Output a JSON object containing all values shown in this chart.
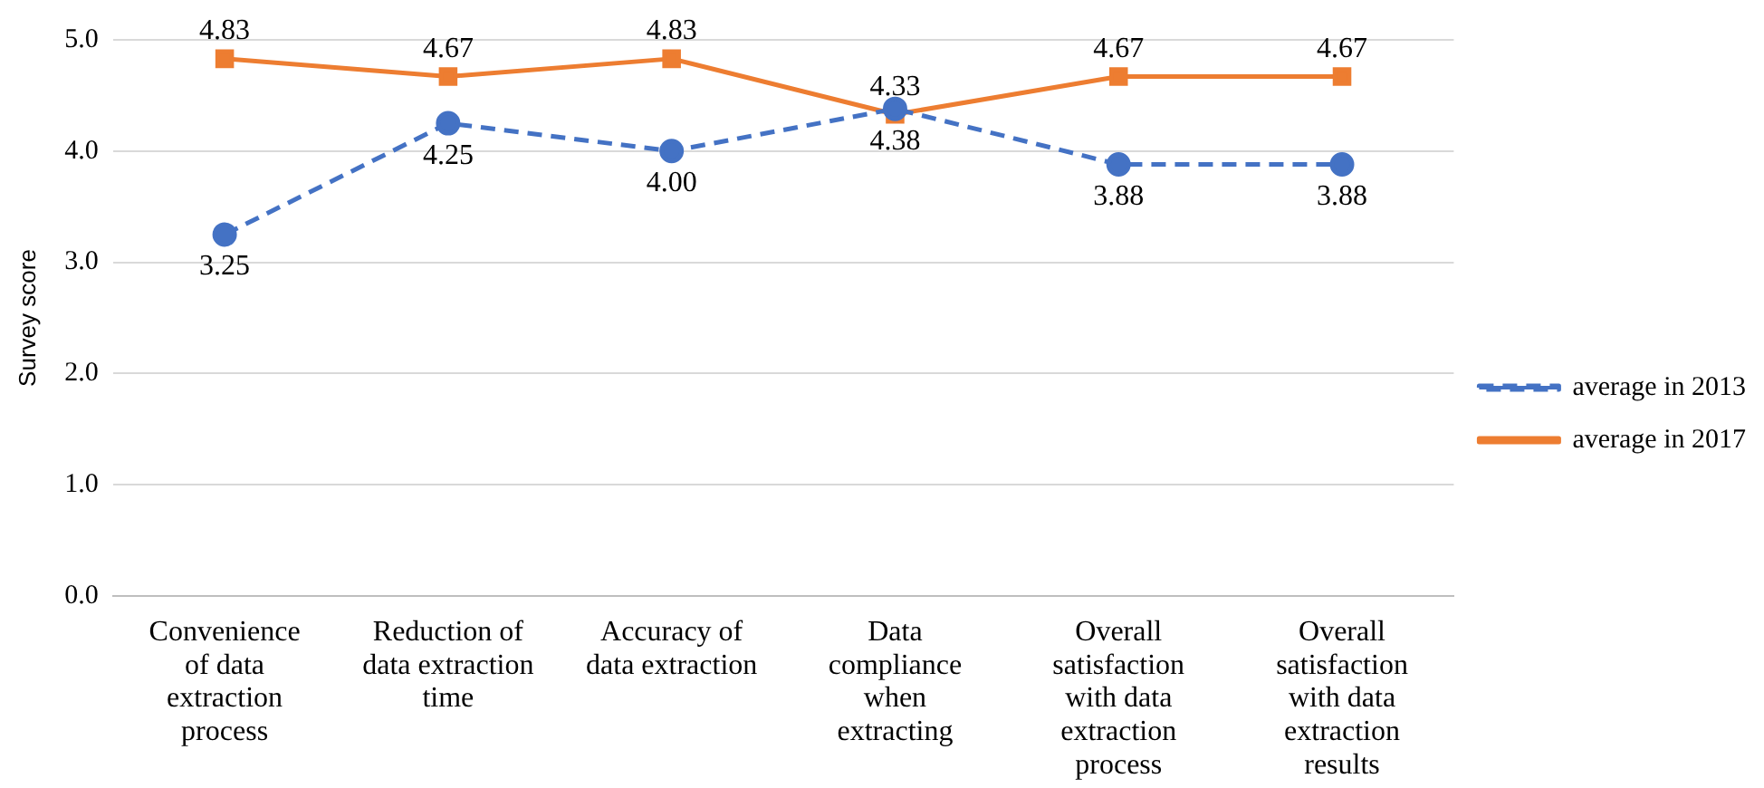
{
  "chart_data": {
    "type": "line",
    "ylabel": "Survey score",
    "categories": [
      "Convenience of data extraction process",
      "Reduction of data extraction time",
      "Accuracy of data extraction",
      "Data compliance when extracting",
      "Overall satisfaction with data extraction process",
      "Overall satisfaction with data extraction results"
    ],
    "series": [
      {
        "name": "average in 2013",
        "color": "#4472c4",
        "values": [
          3.25,
          4.25,
          4.0,
          4.38,
          3.88,
          3.88
        ],
        "value_labels": [
          "3.25",
          "4.25",
          "4.00",
          "4.38",
          "3.88",
          "3.88"
        ],
        "marker": "circle",
        "line_style": "dashed"
      },
      {
        "name": "average in 2017",
        "color": "#ed7d31",
        "values": [
          4.83,
          4.67,
          4.83,
          4.33,
          4.67,
          4.67
        ],
        "value_labels": [
          "4.83",
          "4.67",
          "4.83",
          "4.33",
          "4.67",
          "4.67"
        ],
        "marker": "square",
        "line_style": "solid"
      }
    ],
    "ylim": [
      0,
      5
    ],
    "yticks": [
      {
        "value": 0,
        "label": "0.0"
      },
      {
        "value": 1,
        "label": "1.0"
      },
      {
        "value": 2,
        "label": "2.0"
      },
      {
        "value": 3,
        "label": "3.0"
      },
      {
        "value": 4,
        "label": "4.0"
      },
      {
        "value": 5,
        "label": "5.0"
      }
    ],
    "grid": "y",
    "legend": "right"
  }
}
